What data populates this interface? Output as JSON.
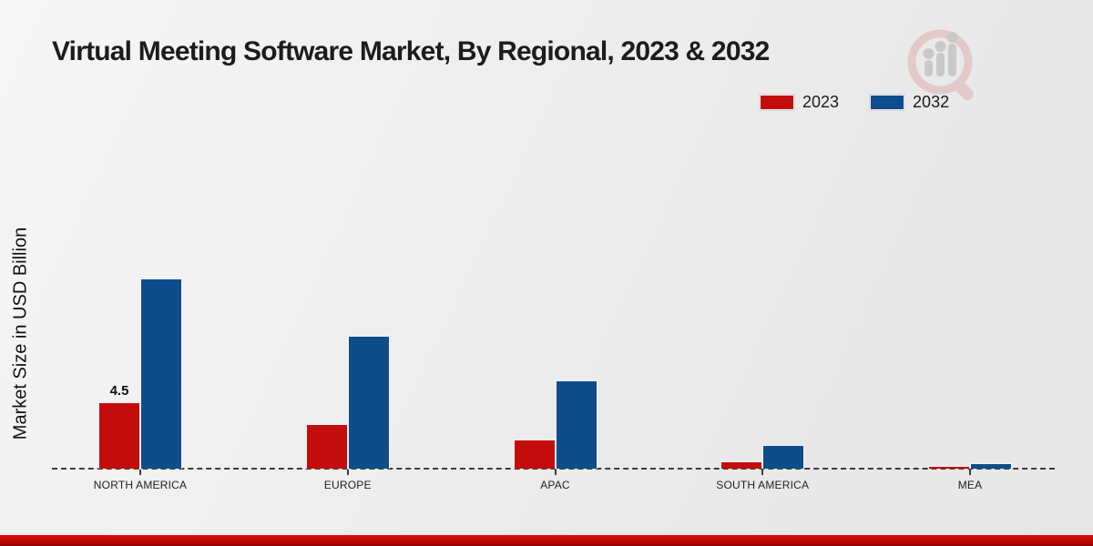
{
  "page": {
    "title": "Virtual Meeting Software Market, By Regional, 2023 & 2032"
  },
  "legend": {
    "position": "top-right",
    "items": [
      {
        "label": "2023",
        "color": "#c50c0c"
      },
      {
        "label": "2032",
        "color": "#0e4d8c"
      }
    ]
  },
  "icons": {
    "logo": "magnifier-bar-chart-logo-icon"
  },
  "footer": {
    "color": "#c40606"
  },
  "chart_data": {
    "type": "bar",
    "title": "Virtual Meeting Software Market, By Regional, 2023 & 2032",
    "xlabel": "",
    "ylabel": "Market Size in USD Billion",
    "unit": "USD Billion",
    "categories": [
      "NORTH AMERICA",
      "EUROPE",
      "APAC",
      "SOUTH AMERICA",
      "MEA"
    ],
    "series": [
      {
        "name": "2023",
        "color": "#c50c0c",
        "values": [
          4.5,
          3.0,
          2.0,
          0.5,
          0.2
        ],
        "data_labels": [
          "4.5",
          "",
          "",
          "",
          ""
        ]
      },
      {
        "name": "2032",
        "color": "#0e4d8c",
        "values": [
          12.9,
          9.0,
          6.0,
          1.6,
          0.4
        ],
        "data_labels": [
          "",
          "",
          "",
          "",
          ""
        ]
      }
    ],
    "ylim": [
      0,
      14
    ],
    "grid": false,
    "baseline_style": "dashed",
    "y_tick_labels_visible": false,
    "legend_position": "top-right"
  }
}
